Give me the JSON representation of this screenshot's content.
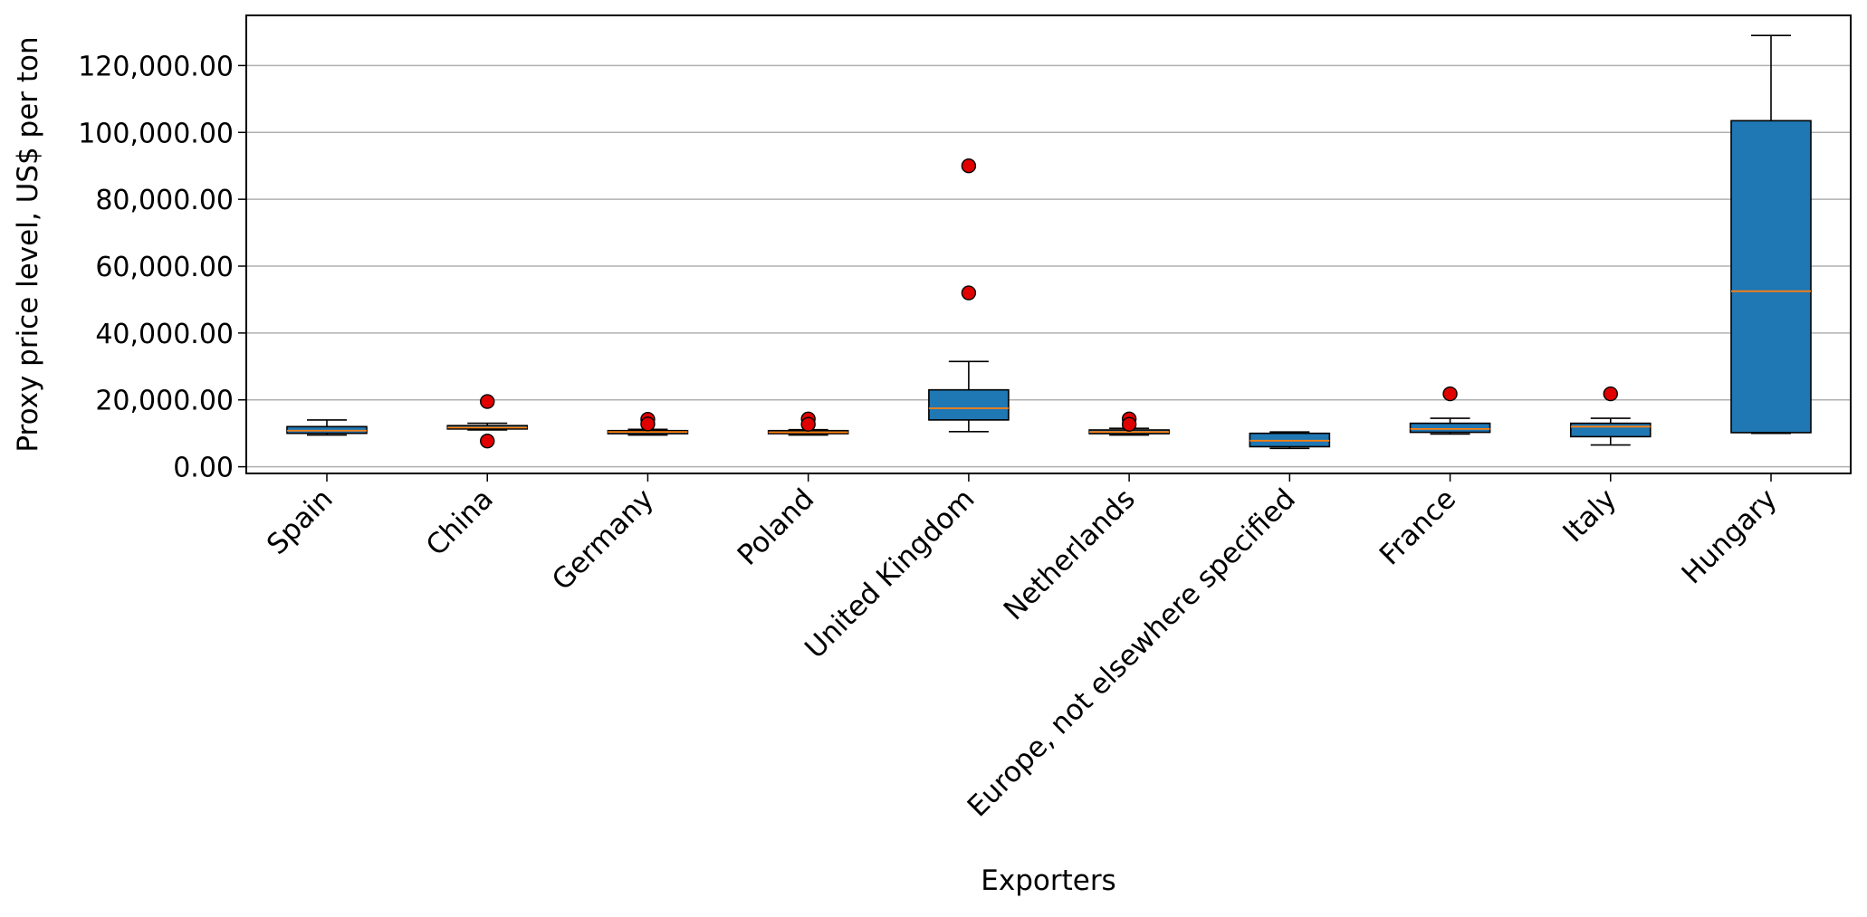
{
  "chart_data": {
    "type": "box",
    "title": "",
    "xlabel": "Exporters",
    "ylabel": "Proxy price level, US$ per ton",
    "ylim": [
      -2000,
      135000
    ],
    "y_ticks": [
      0,
      20000,
      40000,
      60000,
      80000,
      100000,
      120000
    ],
    "y_tick_labels": [
      "0.00",
      "20,000.00",
      "40,000.00",
      "60,000.00",
      "80,000.00",
      "100,000.00",
      "120,000.00"
    ],
    "grid": "horizontal",
    "colors": {
      "box_fill": "#1f77b4",
      "median": "#ff7f0e",
      "outlier_fill": "#e00000",
      "grid": "#b0b0b0"
    },
    "categories": [
      "Spain",
      "China",
      "Germany",
      "Poland",
      "United Kingdom",
      "Netherlands",
      "Europe, not elsewhere specified",
      "France",
      "Italy",
      "Hungary"
    ],
    "boxes": [
      {
        "whisker_low": 9500,
        "q1": 10000,
        "median": 10800,
        "q3": 12000,
        "whisker_high": 14000,
        "outliers": []
      },
      {
        "whisker_low": 11000,
        "q1": 11300,
        "median": 11700,
        "q3": 12300,
        "whisker_high": 13000,
        "outliers": [
          19500,
          7700
        ]
      },
      {
        "whisker_low": 9500,
        "q1": 9900,
        "median": 10400,
        "q3": 10800,
        "whisker_high": 11200,
        "outliers": [
          14200,
          12800
        ]
      },
      {
        "whisker_low": 9500,
        "q1": 9900,
        "median": 10300,
        "q3": 10800,
        "whisker_high": 11100,
        "outliers": [
          14300,
          12700
        ]
      },
      {
        "whisker_low": 10500,
        "q1": 14000,
        "median": 17500,
        "q3": 23000,
        "whisker_high": 31500,
        "outliers": [
          90000,
          52000
        ]
      },
      {
        "whisker_low": 9500,
        "q1": 9900,
        "median": 10400,
        "q3": 11000,
        "whisker_high": 11500,
        "outliers": [
          14300,
          12700
        ]
      },
      {
        "whisker_low": 5500,
        "q1": 6000,
        "median": 7800,
        "q3": 10000,
        "whisker_high": 10400,
        "outliers": []
      },
      {
        "whisker_low": 9800,
        "q1": 10300,
        "median": 11300,
        "q3": 13000,
        "whisker_high": 14500,
        "outliers": [
          21800
        ]
      },
      {
        "whisker_low": 6500,
        "q1": 9000,
        "median": 12000,
        "q3": 13000,
        "whisker_high": 14500,
        "outliers": [
          21800
        ]
      },
      {
        "whisker_low": 10000,
        "q1": 10200,
        "median": 52500,
        "q3": 103500,
        "whisker_high": 129000,
        "outliers": []
      }
    ]
  }
}
